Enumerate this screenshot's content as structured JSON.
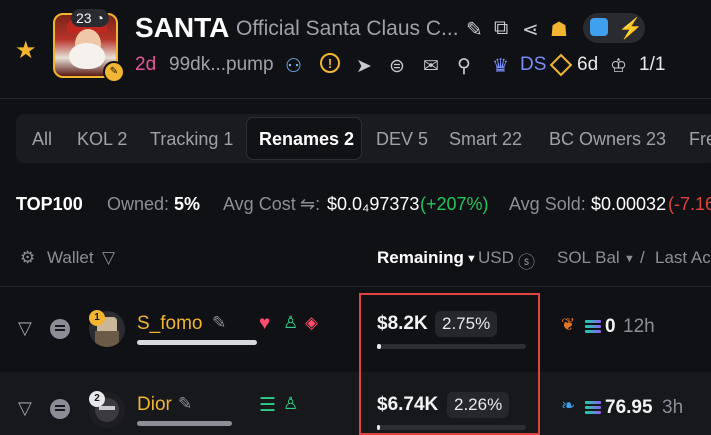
{
  "token": {
    "ticker": "SANTA",
    "name": "Official Santa Claus C...",
    "holders_badge": "23",
    "age": "2d",
    "address": "99dk...pump",
    "ds_label": "DS",
    "days_label": "6d",
    "ratio": "1/1"
  },
  "tabs": [
    {
      "label": "All"
    },
    {
      "label": "KOL 2"
    },
    {
      "label": "Tracking 1"
    },
    {
      "label": "Renames 2"
    },
    {
      "label": "DEV 5"
    },
    {
      "label": "Smart 22"
    },
    {
      "label": "BC Owners 23"
    },
    {
      "label": "Fre"
    }
  ],
  "active_tab": "Renames 2",
  "stats": {
    "top_label": "TOP100",
    "owned_label": "Owned:",
    "owned_value": "5%",
    "avg_cost_label": "Avg Cost",
    "avg_cost_value": "$0.0₄97373",
    "avg_cost_change": "(+207%)",
    "avg_sold_label": "Avg Sold:",
    "avg_sold_value": "$0.00032",
    "avg_sold_change": "(-7.16"
  },
  "columns": {
    "wallet": "Wallet",
    "remaining": "Remaining",
    "usd": "USD",
    "sol_bal": "SOL Bal",
    "last": "Last Ac"
  },
  "rows": [
    {
      "rank": "1",
      "name": "S_fomo",
      "remaining": "$8.2K",
      "pct": "2.75%",
      "sol": "0",
      "time": "12h"
    },
    {
      "rank": "2",
      "name": "Dior",
      "remaining": "$6.74K",
      "pct": "2.26%",
      "sol": "76.95",
      "time": "3h"
    }
  ],
  "colors": {
    "accent_gold": "#f1b531",
    "age_pink": "#e8549a",
    "positive": "#22c55e",
    "negative": "#e0423e",
    "ds_blue": "#7a8cf6"
  }
}
